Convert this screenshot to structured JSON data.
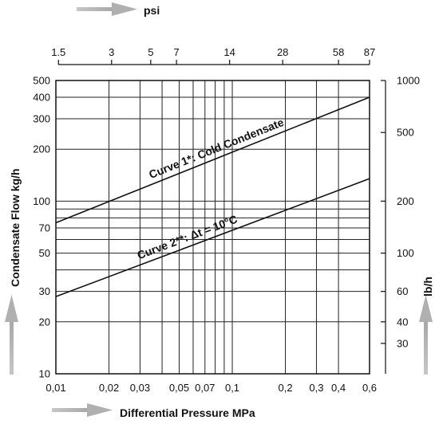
{
  "chart_data": {
    "type": "line",
    "x_scale": "log",
    "y_scale": "log",
    "xlim": [
      0.01,
      0.6
    ],
    "ylim": [
      10,
      500
    ],
    "grid": true,
    "xlabel": "Differential Pressure MPa",
    "ylabel": "Condensate Flow kg/h",
    "x2label": "psi",
    "y2label": "lb/h",
    "x_ticks": [
      {
        "value": 0.01,
        "label": "0,01"
      },
      {
        "value": 0.02,
        "label": "0,02"
      },
      {
        "value": 0.03,
        "label": "0,03"
      },
      {
        "value": 0.05,
        "label": "0,05"
      },
      {
        "value": 0.07,
        "label": "0,07"
      },
      {
        "value": 0.1,
        "label": "0,1"
      },
      {
        "value": 0.2,
        "label": "0,2"
      },
      {
        "value": 0.3,
        "label": "0,3"
      },
      {
        "value": 0.4,
        "label": "0,4"
      },
      {
        "value": 0.6,
        "label": "0,6"
      }
    ],
    "x_grid_extra": [
      0.04,
      0.06,
      0.08,
      0.09
    ],
    "y_ticks": [
      {
        "value": 10,
        "label": "10"
      },
      {
        "value": 20,
        "label": "20"
      },
      {
        "value": 30,
        "label": "30"
      },
      {
        "value": 50,
        "label": "50"
      },
      {
        "value": 70,
        "label": "70"
      },
      {
        "value": 100,
        "label": "100"
      },
      {
        "value": 200,
        "label": "200"
      },
      {
        "value": 300,
        "label": "300"
      },
      {
        "value": 400,
        "label": "400"
      },
      {
        "value": 500,
        "label": "500"
      }
    ],
    "y_grid_extra": [
      40,
      60,
      80,
      90
    ],
    "x2_ticks": [
      {
        "value": 1.5,
        "label": "1.5"
      },
      {
        "value": 3,
        "label": "3"
      },
      {
        "value": 5,
        "label": "5"
      },
      {
        "value": 7,
        "label": "7"
      },
      {
        "value": 14,
        "label": "14"
      },
      {
        "value": 28,
        "label": "28"
      },
      {
        "value": 58,
        "label": "58"
      },
      {
        "value": 87,
        "label": "87"
      }
    ],
    "y2_ticks": [
      {
        "value": 30,
        "label": "30"
      },
      {
        "value": 40,
        "label": "40"
      },
      {
        "value": 60,
        "label": "60"
      },
      {
        "value": 100,
        "label": "100"
      },
      {
        "value": 200,
        "label": "200"
      },
      {
        "value": 500,
        "label": "500"
      },
      {
        "value": 1000,
        "label": "1000"
      }
    ],
    "series": [
      {
        "name": "Curve 1*: Cold Condensate",
        "x": [
          0.01,
          0.6
        ],
        "y": [
          75,
          400
        ]
      },
      {
        "name": "Curve 2**: Δt = 10°C",
        "x": [
          0.01,
          0.6
        ],
        "y": [
          28,
          135
        ]
      }
    ]
  }
}
